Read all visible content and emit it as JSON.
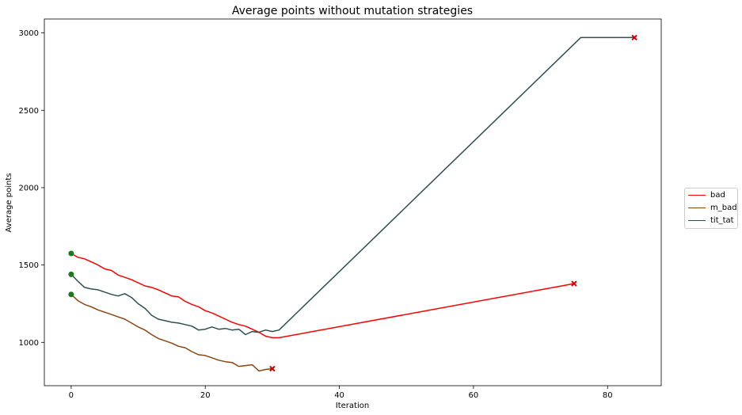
{
  "chart_data": {
    "type": "line",
    "title": "Average points without mutation strategies",
    "xlabel": "Iteration",
    "ylabel": "Average points",
    "xlim": [
      -4,
      88
    ],
    "ylim": [
      720,
      3090
    ],
    "xticks": [
      0,
      20,
      40,
      60,
      80
    ],
    "yticks": [
      1000,
      1500,
      2000,
      2500,
      3000
    ],
    "grid": false,
    "legend_position": "right",
    "series": [
      {
        "name": "bad",
        "color": "#ff0000",
        "start_marker_color": "#1a7a1a",
        "end_marker_color": "#cc0000",
        "x": [
          0,
          1,
          2,
          3,
          4,
          5,
          6,
          7,
          8,
          9,
          10,
          11,
          12,
          13,
          14,
          15,
          16,
          17,
          18,
          19,
          20,
          21,
          22,
          23,
          24,
          25,
          26,
          27,
          28,
          29,
          30,
          31,
          75
        ],
        "y": [
          1575,
          1550,
          1540,
          1520,
          1500,
          1475,
          1465,
          1435,
          1420,
          1405,
          1385,
          1365,
          1355,
          1340,
          1320,
          1300,
          1295,
          1265,
          1245,
          1230,
          1205,
          1190,
          1170,
          1150,
          1130,
          1115,
          1105,
          1085,
          1065,
          1040,
          1030,
          1030,
          1380
        ]
      },
      {
        "name": "m_bad",
        "color": "#8b4513",
        "start_marker_color": "#1a7a1a",
        "end_marker_color": "#cc0000",
        "x": [
          0,
          1,
          2,
          3,
          4,
          5,
          6,
          7,
          8,
          9,
          10,
          11,
          12,
          13,
          14,
          15,
          16,
          17,
          18,
          19,
          20,
          21,
          22,
          23,
          24,
          25,
          26,
          27,
          28,
          29,
          30
        ],
        "y": [
          1310,
          1270,
          1245,
          1230,
          1210,
          1195,
          1180,
          1165,
          1150,
          1125,
          1100,
          1080,
          1050,
          1025,
          1010,
          995,
          975,
          965,
          940,
          920,
          915,
          900,
          885,
          875,
          870,
          845,
          850,
          855,
          815,
          825,
          830
        ]
      },
      {
        "name": "tit_tat",
        "color": "#2f4f4f",
        "start_marker_color": "#1a7a1a",
        "end_marker_color": "#cc0000",
        "x": [
          0,
          1,
          2,
          3,
          4,
          5,
          6,
          7,
          8,
          9,
          10,
          11,
          12,
          13,
          14,
          15,
          16,
          17,
          18,
          19,
          20,
          21,
          22,
          23,
          24,
          25,
          26,
          27,
          28,
          29,
          30,
          31,
          76,
          84
        ],
        "y": [
          1440,
          1395,
          1355,
          1345,
          1340,
          1325,
          1310,
          1300,
          1315,
          1290,
          1250,
          1220,
          1175,
          1150,
          1140,
          1130,
          1125,
          1115,
          1105,
          1080,
          1085,
          1100,
          1085,
          1090,
          1080,
          1085,
          1050,
          1070,
          1065,
          1080,
          1070,
          1080,
          2970,
          2970
        ]
      }
    ]
  }
}
